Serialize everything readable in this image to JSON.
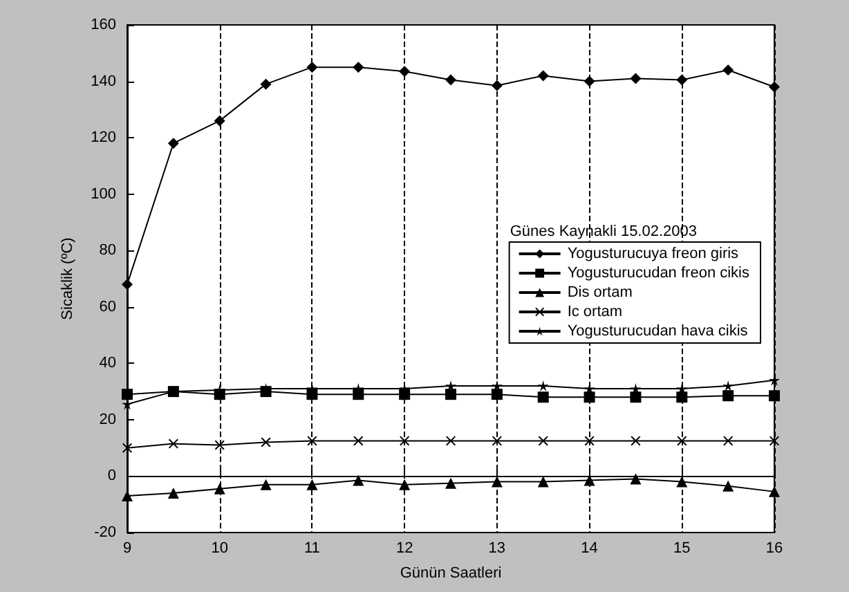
{
  "chart_data": {
    "type": "line",
    "xlabel": "Günün Saatleri",
    "ylabel": "Sicaklik (ºC)",
    "annotations": [
      "Günes Kaynakli 15.02.2003"
    ],
    "x": [
      9,
      9.5,
      10,
      10.5,
      11,
      11.5,
      12,
      12.5,
      13,
      13.5,
      14,
      14.5,
      15,
      15.5,
      16
    ],
    "series": [
      {
        "name": "Yogusturucuya freon giris",
        "color": "#000000",
        "marker": "diamond",
        "values": [
          68,
          118,
          126,
          139,
          145,
          145,
          143.5,
          140.5,
          138.5,
          142,
          140,
          141,
          140.5,
          144,
          138
        ]
      },
      {
        "name": "Yogusturucudan freon cikis",
        "color": "#000000",
        "marker": "square",
        "values": [
          29,
          30,
          29,
          30,
          29,
          29,
          29,
          29,
          29,
          28,
          28,
          28,
          28,
          28.5,
          28.5
        ]
      },
      {
        "name": "Dis ortam",
        "color": "#000000",
        "marker": "triangle",
        "values": [
          -7,
          -6,
          -4.5,
          -3,
          -3,
          -1.5,
          -3,
          -2.5,
          -2,
          -2,
          -1.5,
          -1,
          -2,
          -3.5,
          -5.5
        ]
      },
      {
        "name": "Ic ortam",
        "color": "#000000",
        "marker": "cross",
        "values": [
          10,
          11.5,
          11,
          12,
          12.5,
          12.5,
          12.5,
          12.5,
          12.5,
          12.5,
          12.5,
          12.5,
          12.5,
          12.5,
          12.5
        ]
      },
      {
        "name": "Yogusturucudan hava cikis",
        "color": "#000000",
        "marker": "star",
        "values": [
          25.5,
          30,
          30.5,
          31,
          31,
          31,
          31,
          32,
          32,
          32,
          31,
          31,
          31,
          32,
          34
        ]
      }
    ],
    "xlim": [
      9,
      16
    ],
    "xticks": [
      9,
      10,
      11,
      12,
      13,
      14,
      15,
      16
    ],
    "ylim": [
      -20,
      160
    ],
    "yticks": [
      -20,
      0,
      20,
      40,
      60,
      80,
      100,
      120,
      140,
      160
    ],
    "grid": "x",
    "legend": "right",
    "line_style": "solid"
  }
}
